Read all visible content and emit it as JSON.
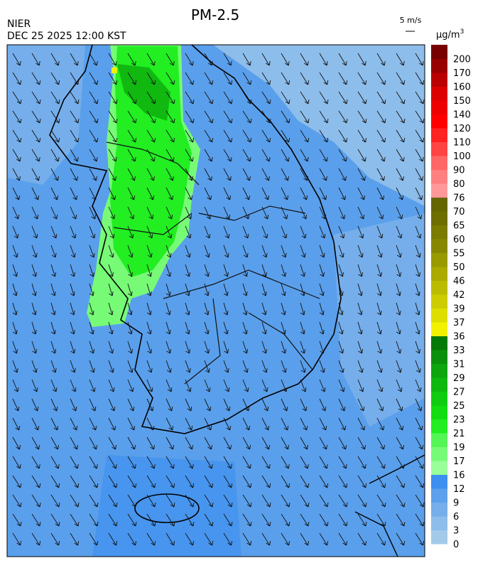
{
  "header": {
    "title": "PM-2.5",
    "agency": "NIER",
    "datetime": "DEC 25 2025 12:00 KST"
  },
  "wind_legend": {
    "label": "5 m/s"
  },
  "colorbar": {
    "unit": "µg/m",
    "unit_superscript": "3",
    "levels": [
      {
        "value": 0,
        "color": "#a3cbe9"
      },
      {
        "value": 3,
        "color": "#8dbdeb"
      },
      {
        "value": 6,
        "color": "#75aeeb"
      },
      {
        "value": 9,
        "color": "#5da1ec"
      },
      {
        "value": 12,
        "color": "#3d8ff0"
      },
      {
        "value": 16,
        "color": "#99ff99"
      },
      {
        "value": 17,
        "color": "#77fb77"
      },
      {
        "value": 19,
        "color": "#55f555"
      },
      {
        "value": 21,
        "color": "#22ee22"
      },
      {
        "value": 23,
        "color": "#11dd11"
      },
      {
        "value": 25,
        "color": "#10cc10"
      },
      {
        "value": 27,
        "color": "#0fb80f"
      },
      {
        "value": 29,
        "color": "#0ea50e"
      },
      {
        "value": 31,
        "color": "#0b900b"
      },
      {
        "value": 33,
        "color": "#067a06"
      },
      {
        "value": 36,
        "color": "#f2f200"
      },
      {
        "value": 37,
        "color": "#dede00"
      },
      {
        "value": 39,
        "color": "#cccc00"
      },
      {
        "value": 42,
        "color": "#bbbb00"
      },
      {
        "value": 46,
        "color": "#aaaa00"
      },
      {
        "value": 50,
        "color": "#999900"
      },
      {
        "value": 55,
        "color": "#888800"
      },
      {
        "value": 60,
        "color": "#7b7b00"
      },
      {
        "value": 65,
        "color": "#6e6e00"
      },
      {
        "value": 70,
        "color": "#666600"
      },
      {
        "value": 76,
        "color": "#ff9999"
      },
      {
        "value": 80,
        "color": "#ff8080"
      },
      {
        "value": 90,
        "color": "#ff6666"
      },
      {
        "value": 100,
        "color": "#ff4444"
      },
      {
        "value": 110,
        "color": "#ff2222"
      },
      {
        "value": 120,
        "color": "#ff0000"
      },
      {
        "value": 140,
        "color": "#ee0000"
      },
      {
        "value": 150,
        "color": "#dd0000"
      },
      {
        "value": 160,
        "color": "#bb0000"
      },
      {
        "value": 170,
        "color": "#990000"
      },
      {
        "value": 200,
        "color": "#770000"
      }
    ]
  }
}
